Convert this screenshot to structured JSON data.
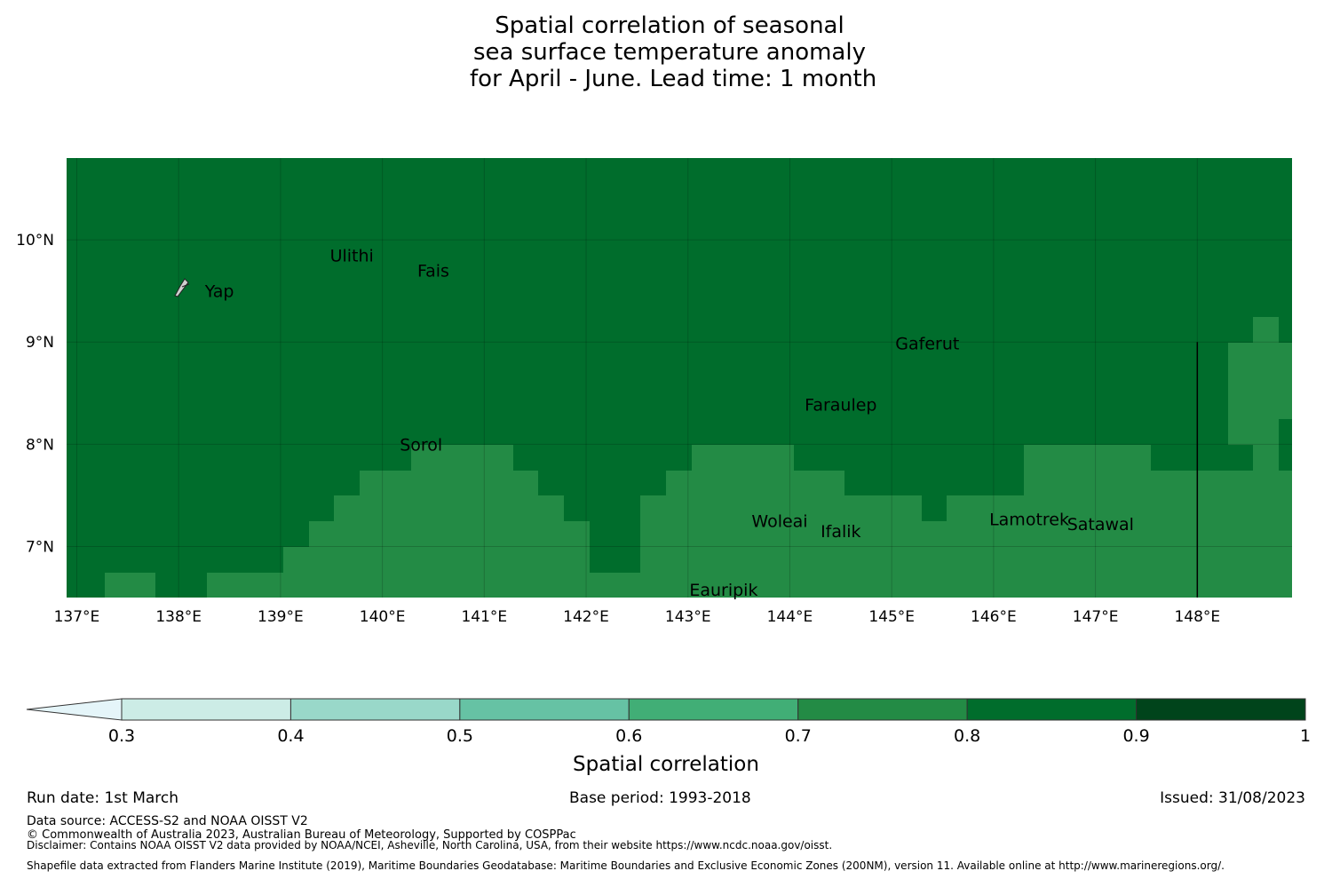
{
  "title": {
    "line1": "Spatial correlation of seasonal",
    "line2": "sea surface temperature anomaly",
    "line3": " for April - June. Lead time: 1 month"
  },
  "map": {
    "lon_ticks": [
      "137°E",
      "138°E",
      "139°E",
      "140°E",
      "141°E",
      "142°E",
      "143°E",
      "144°E",
      "145°E",
      "146°E",
      "147°E",
      "148°E"
    ],
    "lon_values": [
      137,
      138,
      139,
      140,
      141,
      142,
      143,
      144,
      145,
      146,
      147,
      148
    ],
    "lat_ticks": [
      "10°N",
      "9°N",
      "8°N",
      "7°N"
    ],
    "lat_values": [
      10,
      9,
      8,
      7
    ],
    "extent": {
      "lon_min": 136.9,
      "lon_max": 148.93,
      "lat_min": 6.5,
      "lat_max": 10.8
    },
    "base_fill_color": "#006d2c",
    "band_color": "#238b45",
    "places": [
      {
        "name": "Ulithi",
        "lon": 139.7,
        "lat": 9.85
      },
      {
        "name": "Fais",
        "lon": 140.5,
        "lat": 9.7
      },
      {
        "name": "Yap",
        "lon": 138.4,
        "lat": 9.5
      },
      {
        "name": "Gaferut",
        "lon": 145.35,
        "lat": 8.99
      },
      {
        "name": "Faraulep",
        "lon": 144.5,
        "lat": 8.39
      },
      {
        "name": "Sorol",
        "lon": 140.38,
        "lat": 8.0
      },
      {
        "name": "Woleai",
        "lon": 143.9,
        "lat": 7.25
      },
      {
        "name": "Ifalik",
        "lon": 144.5,
        "lat": 7.15
      },
      {
        "name": "Lamotrek",
        "lon": 146.35,
        "lat": 7.27
      },
      {
        "name": "Satawal",
        "lon": 147.05,
        "lat": 7.22
      },
      {
        "name": "Eauripik",
        "lon": 143.35,
        "lat": 6.58
      }
    ]
  },
  "colorbar": {
    "bounds": [
      0.3,
      0.4,
      0.5,
      0.6,
      0.7,
      0.8,
      0.9,
      1
    ],
    "tick_labels": [
      "0.3",
      "0.4",
      "0.5",
      "0.6",
      "0.7",
      "0.8",
      "0.9",
      "1"
    ],
    "colors": [
      "#ccece6",
      "#99d8c9",
      "#66c2a4",
      "#41ae76",
      "#238b45",
      "#006d2c",
      "#00441b"
    ],
    "under_color": "#e5f5f9",
    "label": "Spatial correlation"
  },
  "footer": {
    "run_date": "Run date: 1st March",
    "base_period": "Base period: 1993-2018",
    "issued": "Issued: 31/08/2023",
    "data_source": "Data source: ACCESS-S2 and NOAA OISST V2",
    "copyright": "© Commonwealth of Australia 2023, Australian Bureau of Meteorology, Supported by COSPPac",
    "disclaimer": "Disclaimer: Contains NOAA OISST V2 data provided by NOAA/NCEI, Asheville, North Carolina, USA, from their website https://www.ncdc.noaa.gov/oisst.",
    "shapefile": "Shapefile data extracted from Flanders Marine Institute (2019), Maritime Boundaries Geodatabase: Maritime Boundaries and Exclusive Economic Zones (200NM), version 11. Available online at http://www.marineregions.org/."
  }
}
